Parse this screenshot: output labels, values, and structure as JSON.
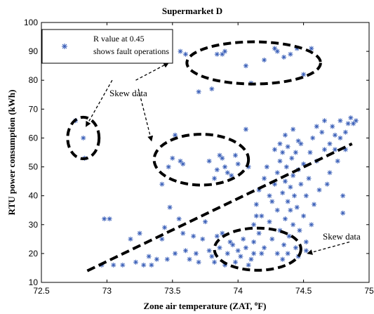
{
  "chart_data": {
    "type": "scatter",
    "title": "Supermarket D",
    "xlabel": "Zone air temperature (ZAT, ",
    "xlabel_sup": "o",
    "xlabel_end": "F)",
    "ylabel": "RTU power consumption (kWh)",
    "xlim": [
      72.5,
      75
    ],
    "ylim": [
      10,
      100
    ],
    "xticks": [
      "72.5",
      "73",
      "73.5",
      "74",
      "74.5",
      "75"
    ],
    "yticks": [
      "10",
      "20",
      "30",
      "40",
      "50",
      "60",
      "70",
      "80",
      "90",
      "100"
    ],
    "grid": false,
    "legend": {
      "position": "top-left",
      "line1": "R value at 0.45",
      "line2": "shows fault operations"
    },
    "annotations": [
      {
        "text": "Skew data"
      },
      {
        "text": "Skew data"
      }
    ],
    "colors": {
      "marker": "#3a5fb8",
      "overlay": "#000000"
    },
    "series": [
      {
        "marker": "asterisk",
        "points": [
          [
            72.76,
            66
          ],
          [
            72.82,
            60
          ],
          [
            72.83,
            53
          ],
          [
            72.96,
            16
          ],
          [
            72.98,
            32
          ],
          [
            73.02,
            32
          ],
          [
            73.05,
            16
          ],
          [
            73.12,
            16
          ],
          [
            73.18,
            25
          ],
          [
            73.22,
            17
          ],
          [
            73.25,
            27
          ],
          [
            73.28,
            16
          ],
          [
            73.32,
            19
          ],
          [
            73.34,
            16
          ],
          [
            73.38,
            18
          ],
          [
            73.42,
            25
          ],
          [
            73.44,
            29
          ],
          [
            73.46,
            18
          ],
          [
            73.48,
            36
          ],
          [
            73.52,
            20
          ],
          [
            73.55,
            32
          ],
          [
            73.58,
            27
          ],
          [
            73.6,
            21
          ],
          [
            73.63,
            18
          ],
          [
            73.66,
            26
          ],
          [
            73.68,
            20
          ],
          [
            73.7,
            17
          ],
          [
            73.73,
            25
          ],
          [
            73.75,
            31
          ],
          [
            73.78,
            21
          ],
          [
            73.8,
            19
          ],
          [
            73.82,
            17
          ],
          [
            73.84,
            26
          ],
          [
            73.86,
            22
          ],
          [
            73.88,
            27
          ],
          [
            73.9,
            16
          ],
          [
            73.92,
            20
          ],
          [
            73.94,
            24
          ],
          [
            73.96,
            23
          ],
          [
            73.98,
            17
          ],
          [
            74.0,
            21
          ],
          [
            74.02,
            19
          ],
          [
            74.04,
            25
          ],
          [
            74.06,
            22
          ],
          [
            74.08,
            16
          ],
          [
            74.1,
            18
          ],
          [
            74.12,
            20
          ],
          [
            73.47,
            50
          ],
          [
            73.42,
            44
          ],
          [
            73.5,
            53
          ],
          [
            73.52,
            61
          ],
          [
            73.56,
            52
          ],
          [
            73.58,
            51
          ],
          [
            73.78,
            52
          ],
          [
            73.82,
            46
          ],
          [
            73.84,
            49
          ],
          [
            73.86,
            54
          ],
          [
            73.88,
            53
          ],
          [
            73.9,
            50
          ],
          [
            73.92,
            48
          ],
          [
            73.95,
            47
          ],
          [
            73.98,
            54
          ],
          [
            74.0,
            51
          ],
          [
            74.06,
            63
          ],
          [
            74.08,
            50
          ],
          [
            73.56,
            90
          ],
          [
            73.6,
            89
          ],
          [
            73.7,
            76
          ],
          [
            73.8,
            77
          ],
          [
            73.84,
            89
          ],
          [
            73.88,
            89
          ],
          [
            73.9,
            90
          ],
          [
            74.06,
            85
          ],
          [
            74.1,
            79
          ],
          [
            74.2,
            87
          ],
          [
            74.28,
            91
          ],
          [
            74.3,
            90
          ],
          [
            74.35,
            88
          ],
          [
            74.4,
            89
          ],
          [
            74.45,
            91
          ],
          [
            74.5,
            82
          ],
          [
            74.56,
            91
          ],
          [
            74.12,
            30
          ],
          [
            74.14,
            37
          ],
          [
            74.16,
            42
          ],
          [
            74.18,
            33
          ],
          [
            74.2,
            46
          ],
          [
            74.22,
            50
          ],
          [
            74.24,
            40
          ],
          [
            74.26,
            38
          ],
          [
            74.28,
            44
          ],
          [
            74.3,
            35
          ],
          [
            74.3,
            48
          ],
          [
            74.32,
            52
          ],
          [
            74.32,
            28
          ],
          [
            74.34,
            41
          ],
          [
            74.34,
            55
          ],
          [
            74.35,
            23
          ],
          [
            74.36,
            45
          ],
          [
            74.36,
            32
          ],
          [
            74.37,
            50
          ],
          [
            74.38,
            38
          ],
          [
            74.38,
            57
          ],
          [
            74.39,
            26
          ],
          [
            74.4,
            43
          ],
          [
            74.4,
            35
          ],
          [
            74.41,
            53
          ],
          [
            74.42,
            30
          ],
          [
            74.42,
            47
          ],
          [
            74.43,
            40
          ],
          [
            74.44,
            22
          ],
          [
            74.44,
            55
          ],
          [
            74.45,
            36
          ],
          [
            74.46,
            49
          ],
          [
            74.47,
            28
          ],
          [
            74.48,
            44
          ],
          [
            74.48,
            58
          ],
          [
            74.5,
            33
          ],
          [
            74.5,
            51
          ],
          [
            74.52,
            40
          ],
          [
            74.52,
            24
          ],
          [
            74.54,
            46
          ],
          [
            74.55,
            55
          ],
          [
            74.56,
            30
          ],
          [
            74.57,
            60
          ],
          [
            74.58,
            37
          ],
          [
            74.6,
            52
          ],
          [
            74.62,
            42
          ],
          [
            74.64,
            62
          ],
          [
            74.66,
            56
          ],
          [
            74.68,
            44
          ],
          [
            74.7,
            58
          ],
          [
            74.72,
            64
          ],
          [
            74.74,
            61
          ],
          [
            74.76,
            52
          ],
          [
            74.78,
            66
          ],
          [
            74.8,
            34
          ],
          [
            74.8,
            40
          ],
          [
            74.82,
            62
          ],
          [
            74.84,
            65
          ],
          [
            74.86,
            67
          ],
          [
            74.9,
            66
          ],
          [
            74.26,
            25
          ],
          [
            74.3,
            20
          ],
          [
            74.2,
            22
          ],
          [
            74.16,
            27
          ],
          [
            74.24,
            31
          ],
          [
            74.12,
            24
          ],
          [
            74.34,
            18
          ],
          [
            74.38,
            20
          ],
          [
            74.14,
            33
          ],
          [
            74.18,
            20
          ],
          [
            74.46,
            19
          ],
          [
            74.52,
            21
          ],
          [
            74.28,
            56
          ],
          [
            74.32,
            58
          ],
          [
            74.36,
            61
          ],
          [
            74.42,
            63
          ],
          [
            74.46,
            59
          ],
          [
            74.6,
            64
          ],
          [
            74.66,
            66
          ],
          [
            74.7,
            48
          ],
          [
            74.74,
            56
          ],
          [
            74.78,
            60
          ],
          [
            74.82,
            56
          ],
          [
            74.88,
            65
          ]
        ]
      }
    ],
    "overlays": [
      {
        "kind": "ellipse",
        "cx": 72.82,
        "cy": 60,
        "rx": 0.12,
        "ry": 7.2
      },
      {
        "kind": "ellipse",
        "cx": 73.72,
        "cy": 52.5,
        "rx": 0.36,
        "ry": 8.8
      },
      {
        "kind": "ellipse",
        "cx": 74.12,
        "cy": 86,
        "rx": 0.51,
        "ry": 7.3
      },
      {
        "kind": "ellipse",
        "cx": 74.15,
        "cy": 21.5,
        "rx": 0.33,
        "ry": 7.3
      },
      {
        "kind": "line",
        "x1": 72.85,
        "y1": 14,
        "x2": 74.87,
        "y2": 58
      },
      {
        "kind": "arrow",
        "x1": 73.04,
        "y1": 80,
        "x2": 72.84,
        "y2": 64
      },
      {
        "kind": "arrow",
        "x1": 73.22,
        "y1": 80,
        "x2": 73.47,
        "y2": 86
      },
      {
        "kind": "arrow",
        "x1": 73.24,
        "y1": 77,
        "x2": 73.34,
        "y2": 59
      },
      {
        "kind": "arrow",
        "x1": 74.85,
        "y1": 24,
        "x2": 74.53,
        "y2": 20
      }
    ]
  }
}
